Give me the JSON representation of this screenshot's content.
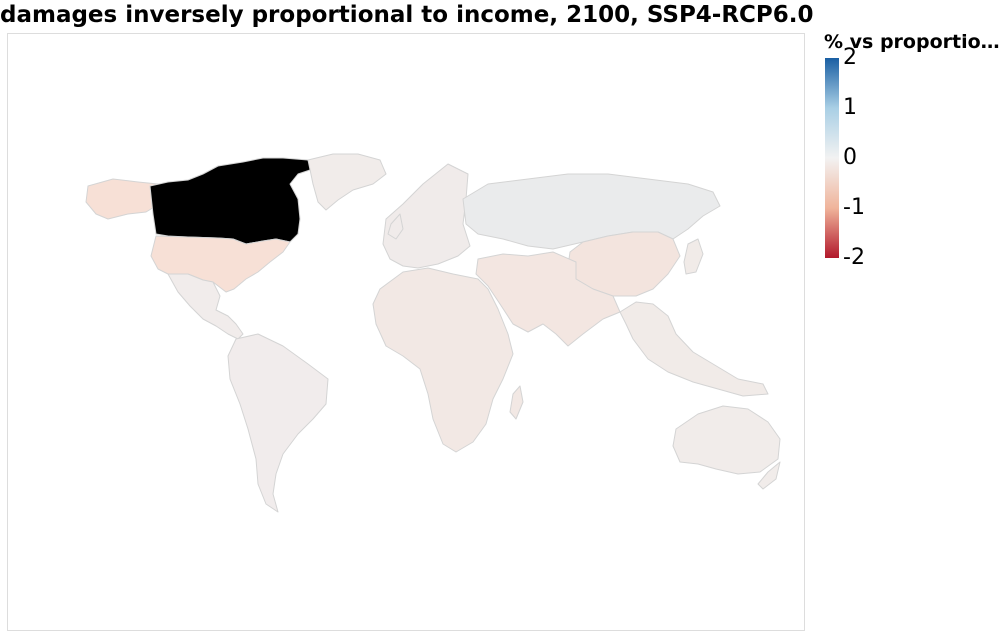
{
  "title": "damages inversely proportional to income, 2100, SSP4-RCP6.0",
  "legend": {
    "title": "% vs proportio…",
    "ticks": [
      {
        "label": "2",
        "value": 2
      },
      {
        "label": "1",
        "value": 1
      },
      {
        "label": "0",
        "value": 0
      },
      {
        "label": "-1",
        "value": -1
      },
      {
        "label": "-2",
        "value": -2
      }
    ],
    "range": [
      -2,
      2
    ],
    "colorscale": {
      "high": "#1a5fa3",
      "mid_high": "#a9cfe5",
      "mid": "#f2f2f2",
      "mid_low": "#f0b49b",
      "low": "#b2182b"
    }
  },
  "colors": {
    "no_data": "#000000",
    "border": "#d4d4d4"
  },
  "regions": [
    {
      "name": "Canada",
      "fill": "#000000"
    },
    {
      "name": "United States",
      "fill": "#f7e0d6"
    },
    {
      "name": "Alaska",
      "fill": "#f7e0d6"
    },
    {
      "name": "Greenland",
      "fill": "#f1ecea"
    },
    {
      "name": "Mexico and Central America",
      "fill": "#f1eceb"
    },
    {
      "name": "South America",
      "fill": "#f1ecec"
    },
    {
      "name": "Europe",
      "fill": "#f0ebea"
    },
    {
      "name": "Russia",
      "fill": "#eaebec"
    },
    {
      "name": "China",
      "fill": "#f3e4de"
    },
    {
      "name": "Middle East and South Asia",
      "fill": "#f3e6e1"
    },
    {
      "name": "Africa",
      "fill": "#f2e8e4"
    },
    {
      "name": "Southeast Asia",
      "fill": "#f1ebe8"
    },
    {
      "name": "Australia",
      "fill": "#f1ecea"
    },
    {
      "name": "New Zealand",
      "fill": "#f1ecea"
    }
  ]
}
